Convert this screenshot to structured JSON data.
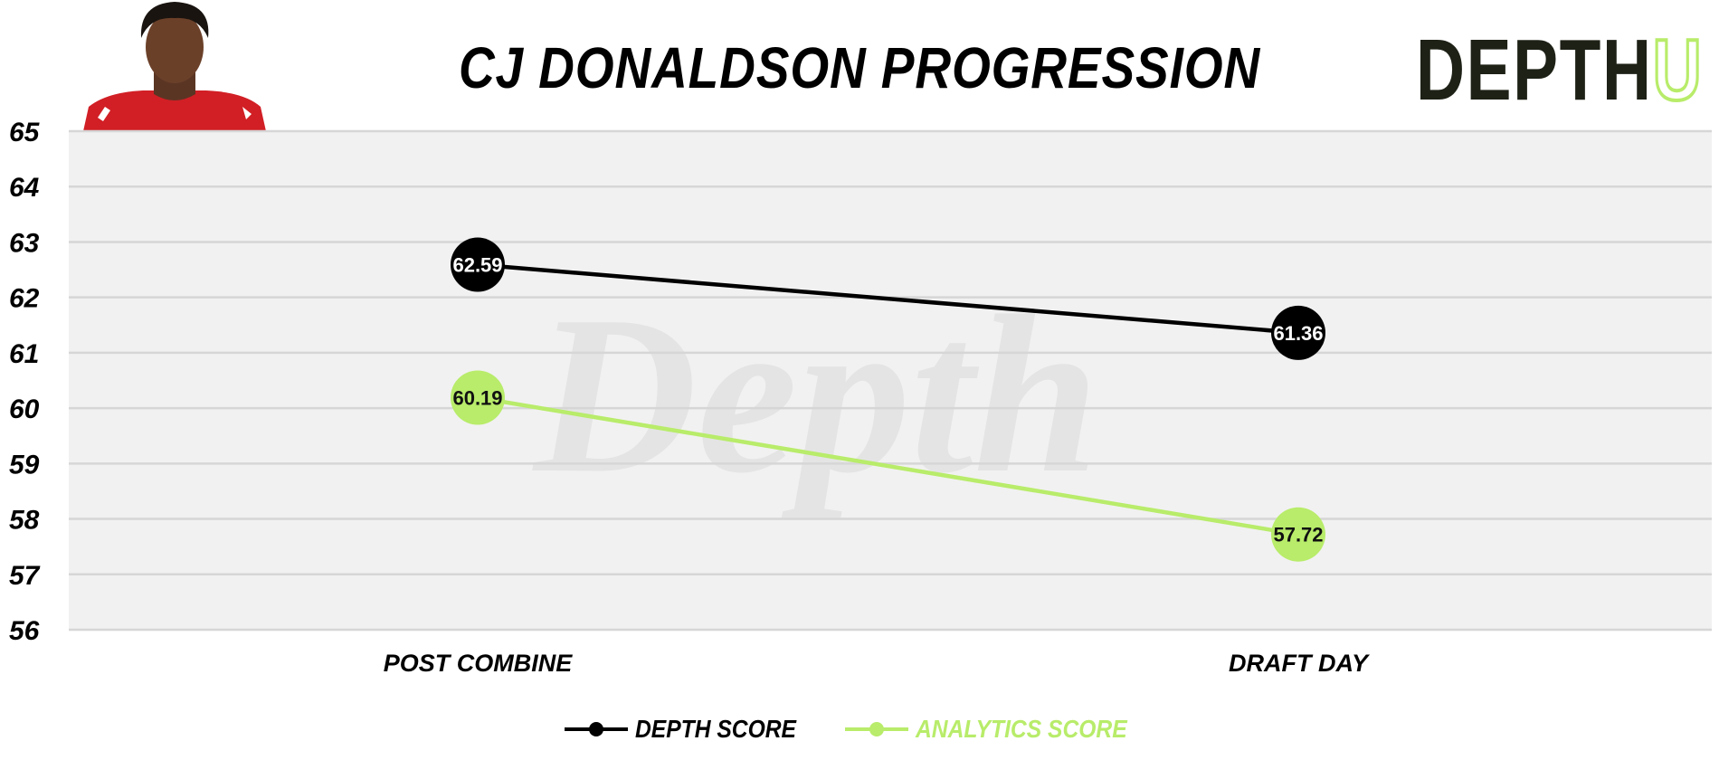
{
  "header": {
    "title": "CJ DONALDSON PROGRESSION",
    "logo_dark": "DEPTH",
    "logo_accent": "U"
  },
  "watermark": "Depth",
  "colors": {
    "depth_score": "#000000",
    "analytics_score": "#b8ec6a",
    "plot_bg": "#f1f1f1",
    "grid": "#d6d6d6",
    "jersey": "#d11f25"
  },
  "chart_data": {
    "type": "line",
    "title": "CJ DONALDSON PROGRESSION",
    "categories": [
      "POST COMBINE",
      "DRAFT DAY"
    ],
    "series": [
      {
        "name": "DEPTH SCORE",
        "values": [
          62.59,
          61.36
        ],
        "labels": [
          "62.59",
          "61.36"
        ]
      },
      {
        "name": "ANALYTICS SCORE",
        "values": [
          60.19,
          57.72
        ],
        "labels": [
          "60.19",
          "57.72"
        ]
      }
    ],
    "ylim": [
      56,
      65
    ],
    "yticks": [
      "65",
      "64",
      "63",
      "62",
      "61",
      "60",
      "59",
      "58",
      "57",
      "56"
    ],
    "grid": true,
    "legend": "bottom-center",
    "xlabel": "",
    "ylabel": ""
  }
}
